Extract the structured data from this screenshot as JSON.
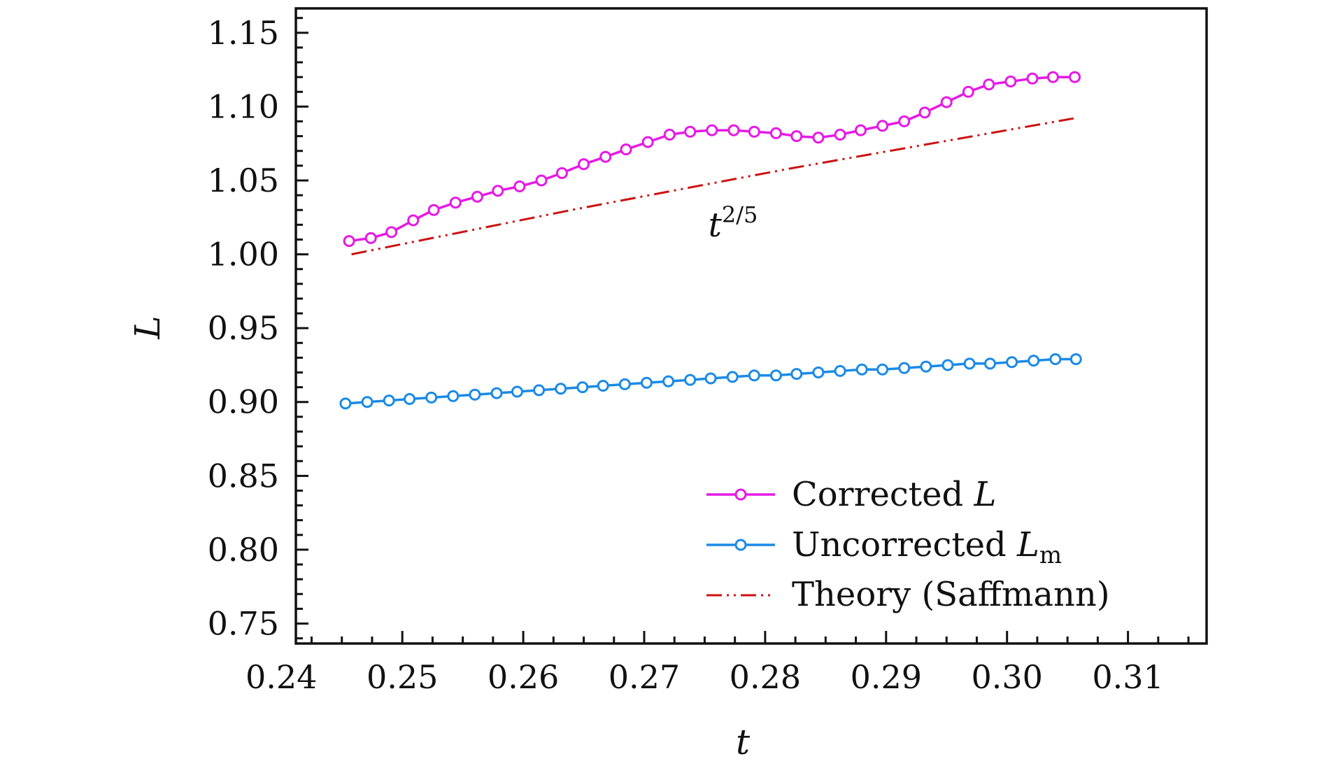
{
  "chart_data": {
    "type": "line",
    "title": "",
    "xlabel": "t",
    "ylabel": "L",
    "xlim": [
      0.2412,
      0.3165
    ],
    "ylim": [
      0.7365,
      1.1665
    ],
    "xticks": [
      0.24,
      0.25,
      0.26,
      0.27,
      0.28,
      0.29,
      0.3,
      0.31
    ],
    "xtick_labels": [
      "0.24",
      "0.25",
      "0.26",
      "0.27",
      "0.28",
      "0.29",
      "0.30",
      "0.31"
    ],
    "yticks": [
      0.75,
      0.8,
      0.85,
      0.9,
      0.95,
      1.0,
      1.05,
      1.1,
      1.15
    ],
    "ytick_labels": [
      "0.75",
      "0.80",
      "0.85",
      "0.90",
      "0.95",
      "1.00",
      "1.05",
      "1.10",
      "1.15"
    ],
    "grid": false,
    "legend_position": "bottom-right",
    "annotation": {
      "base": "t",
      "exponent": "2/5",
      "at": [
        0.2753,
        1.012
      ]
    },
    "series": [
      {
        "name": "Corrected L",
        "legend_main": "Corrected ",
        "legend_var": "L",
        "legend_sub": "",
        "color": "#e619e6",
        "style": "line-circle",
        "x": [
          0.2456,
          0.2474,
          0.2491,
          0.2509,
          0.2526,
          0.2544,
          0.2562,
          0.2579,
          0.2597,
          0.2615,
          0.2632,
          0.265,
          0.2668,
          0.2685,
          0.2703,
          0.2721,
          0.2738,
          0.2756,
          0.2774,
          0.2791,
          0.2809,
          0.2826,
          0.2844,
          0.2862,
          0.2879,
          0.2897,
          0.2915,
          0.2932,
          0.295,
          0.2968,
          0.2985,
          0.3003,
          0.3021,
          0.3038,
          0.3056
        ],
        "y": [
          1.009,
          1.011,
          1.015,
          1.023,
          1.03,
          1.035,
          1.039,
          1.043,
          1.046,
          1.05,
          1.055,
          1.061,
          1.066,
          1.071,
          1.076,
          1.081,
          1.083,
          1.084,
          1.084,
          1.083,
          1.082,
          1.08,
          1.079,
          1.081,
          1.084,
          1.087,
          1.09,
          1.096,
          1.103,
          1.11,
          1.115,
          1.117,
          1.119,
          1.12,
          1.12
        ]
      },
      {
        "name": "Uncorrected Lm",
        "legend_main": "Uncorrected ",
        "legend_var": "L",
        "legend_sub": "m",
        "color": "#1a8ae6",
        "style": "line-circle",
        "x": [
          0.2453,
          0.2471,
          0.2489,
          0.2506,
          0.2524,
          0.2542,
          0.256,
          0.2578,
          0.2595,
          0.2613,
          0.2631,
          0.2649,
          0.2666,
          0.2684,
          0.2702,
          0.272,
          0.2738,
          0.2755,
          0.2773,
          0.2791,
          0.2809,
          0.2826,
          0.2844,
          0.2862,
          0.288,
          0.2897,
          0.2915,
          0.2933,
          0.2951,
          0.2969,
          0.2986,
          0.3004,
          0.3022,
          0.304,
          0.3057
        ],
        "y": [
          0.899,
          0.9,
          0.901,
          0.902,
          0.903,
          0.904,
          0.905,
          0.906,
          0.907,
          0.908,
          0.909,
          0.91,
          0.911,
          0.912,
          0.913,
          0.914,
          0.915,
          0.916,
          0.917,
          0.918,
          0.918,
          0.919,
          0.92,
          0.921,
          0.922,
          0.922,
          0.923,
          0.924,
          0.925,
          0.926,
          0.926,
          0.927,
          0.928,
          0.929,
          0.929
        ]
      },
      {
        "name": "Theory (Saffmann)",
        "legend_main": "Theory (Saffmann)",
        "legend_var": "",
        "legend_sub": "",
        "color": "#cc1111",
        "style": "dash-dot-dot",
        "x": [
          0.2458,
          0.264,
          0.282,
          0.3055
        ],
        "y": [
          1.0,
          1.03,
          1.058,
          1.092
        ]
      }
    ]
  }
}
